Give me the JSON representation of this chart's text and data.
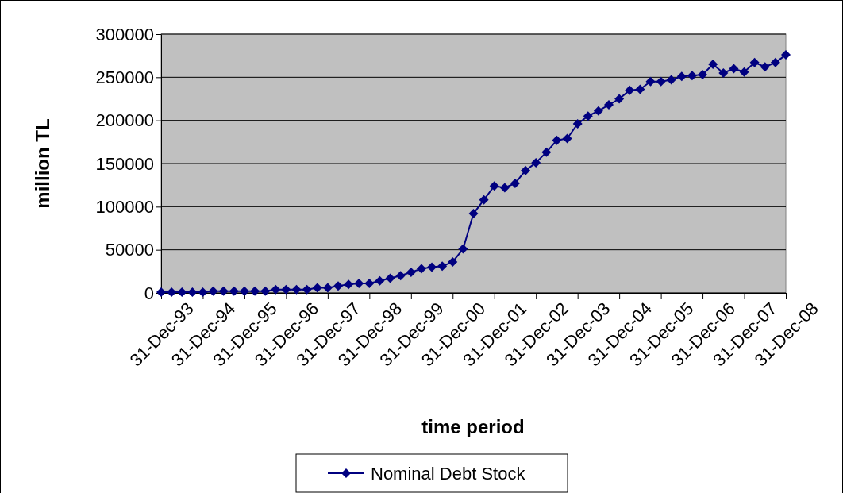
{
  "chart_data": {
    "type": "line",
    "xlabel": "time period",
    "ylabel": "million TL",
    "categories": [
      "31-Dec-93",
      null,
      null,
      null,
      "31-Dec-94",
      null,
      null,
      null,
      "31-Dec-95",
      null,
      null,
      null,
      "31-Dec-96",
      null,
      null,
      null,
      "31-Dec-97",
      null,
      null,
      null,
      "31-Dec-98",
      null,
      null,
      null,
      "31-Dec-99",
      null,
      null,
      null,
      "31-Dec-00",
      null,
      null,
      null,
      "31-Dec-01",
      null,
      null,
      null,
      "31-Dec-02",
      null,
      null,
      null,
      "31-Dec-03",
      null,
      null,
      null,
      "31-Dec-04",
      null,
      null,
      null,
      "31-Dec-05",
      null,
      null,
      null,
      "31-Dec-06",
      null,
      null,
      null,
      "31-Dec-07",
      null,
      null,
      null,
      "31-Dec-08"
    ],
    "series": [
      {
        "name": "Nominal Debt Stock",
        "color": "#000080",
        "values": [
          1000,
          1000,
          1000,
          1000,
          1000,
          2000,
          2000,
          2000,
          2000,
          2000,
          2000,
          4000,
          4000,
          4000,
          4000,
          6000,
          6000,
          8000,
          10000,
          11000,
          11000,
          14000,
          17000,
          20000,
          24000,
          28000,
          30000,
          31000,
          36000,
          51000,
          92000,
          108000,
          124000,
          122000,
          127000,
          142000,
          151000,
          163000,
          177000,
          179000,
          196000,
          205000,
          211000,
          218000,
          225000,
          235000,
          236000,
          245000,
          245000,
          247000,
          251000,
          252000,
          253000,
          265000,
          255000,
          260000,
          256000,
          267000,
          262000,
          267000,
          276000
        ]
      }
    ],
    "ylim": [
      0,
      300000
    ],
    "yticks": [
      0,
      50000,
      100000,
      150000,
      200000,
      250000,
      300000
    ],
    "grid": "y",
    "legend": "bottom",
    "marker": "diamond",
    "line_style": "solid"
  }
}
